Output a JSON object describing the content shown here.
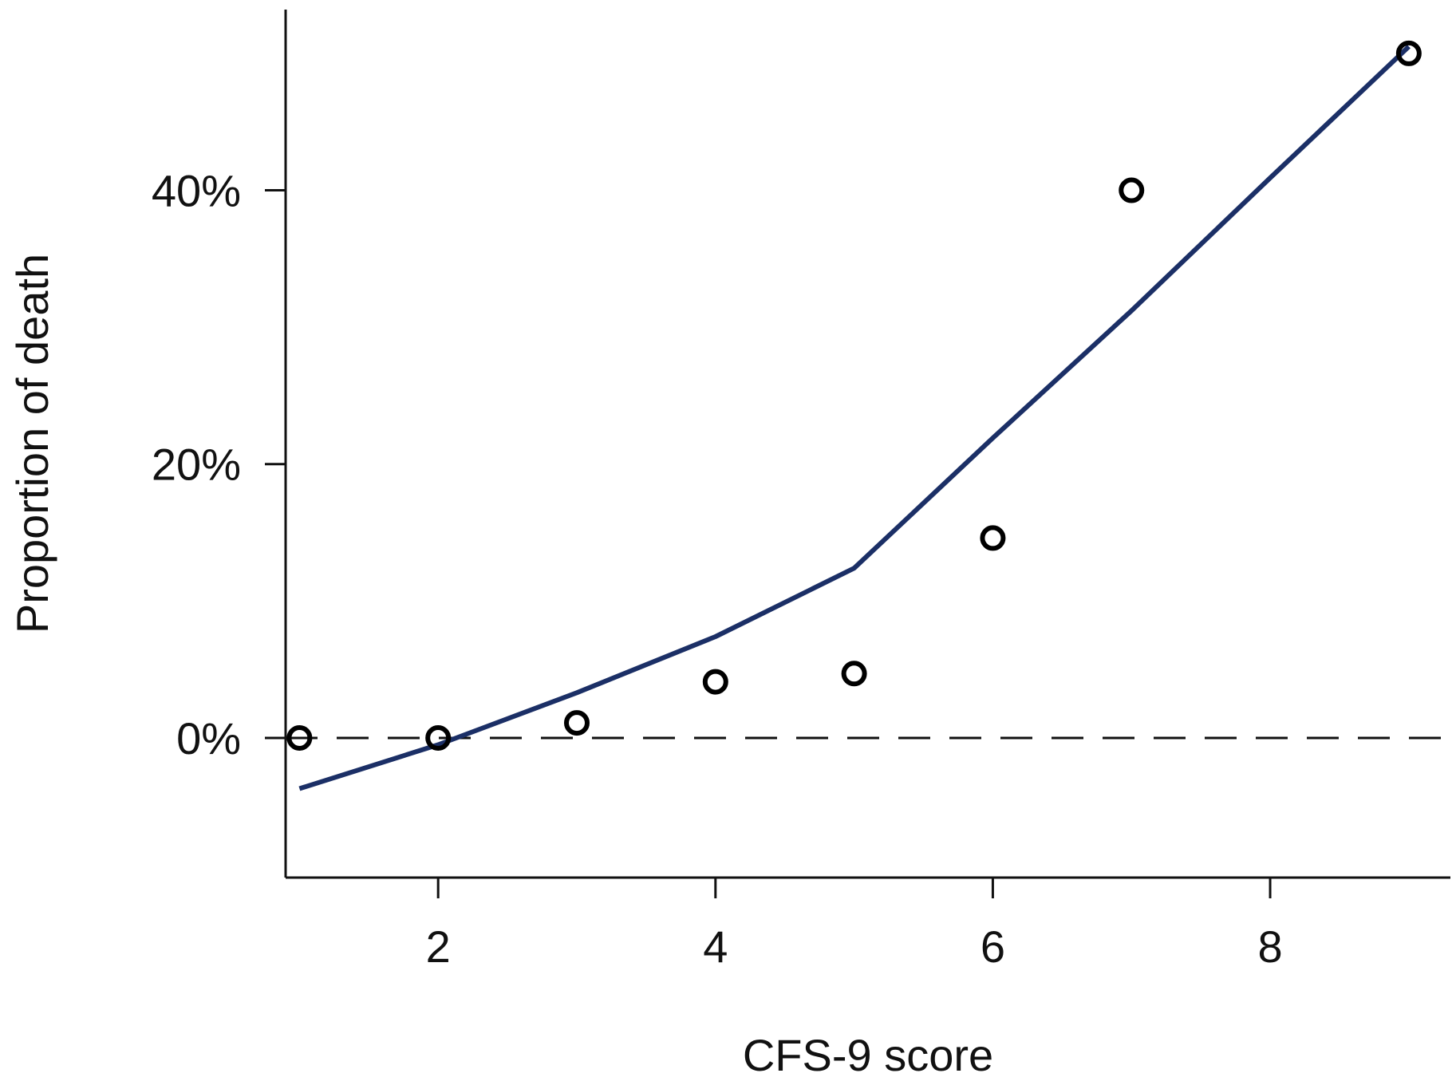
{
  "chart_data": {
    "type": "scatter",
    "title": "",
    "xlabel": "CFS-9 score",
    "ylabel": "Proportion of death",
    "xlim": [
      0.9,
      9.3
    ],
    "ylim": [
      -10.2,
      53.2
    ],
    "x_ticks": [
      2,
      4,
      6,
      8
    ],
    "x_tick_labels": [
      "2",
      "4",
      "6",
      "8"
    ],
    "y_ticks": [
      0,
      20,
      40
    ],
    "y_tick_labels": [
      "0%",
      "20%",
      "40%"
    ],
    "grid": false,
    "legend": "none",
    "reference_line": {
      "y": 0,
      "style": "dashed"
    },
    "series": [
      {
        "kind": "points",
        "marker": "open-circle",
        "color": "#000000",
        "x": [
          1,
          2,
          3,
          4,
          5,
          6,
          7,
          9
        ],
        "y": [
          0,
          0,
          1.1,
          4.1,
          4.7,
          14.6,
          40.0,
          50.0
        ]
      },
      {
        "kind": "line",
        "color": "#1b2f66",
        "x": [
          1,
          2,
          3,
          4,
          5,
          6,
          7,
          8,
          9
        ],
        "y": [
          -3.7,
          -0.5,
          3.3,
          7.4,
          12.4,
          21.9,
          31.2,
          40.9,
          50.5
        ]
      }
    ]
  }
}
